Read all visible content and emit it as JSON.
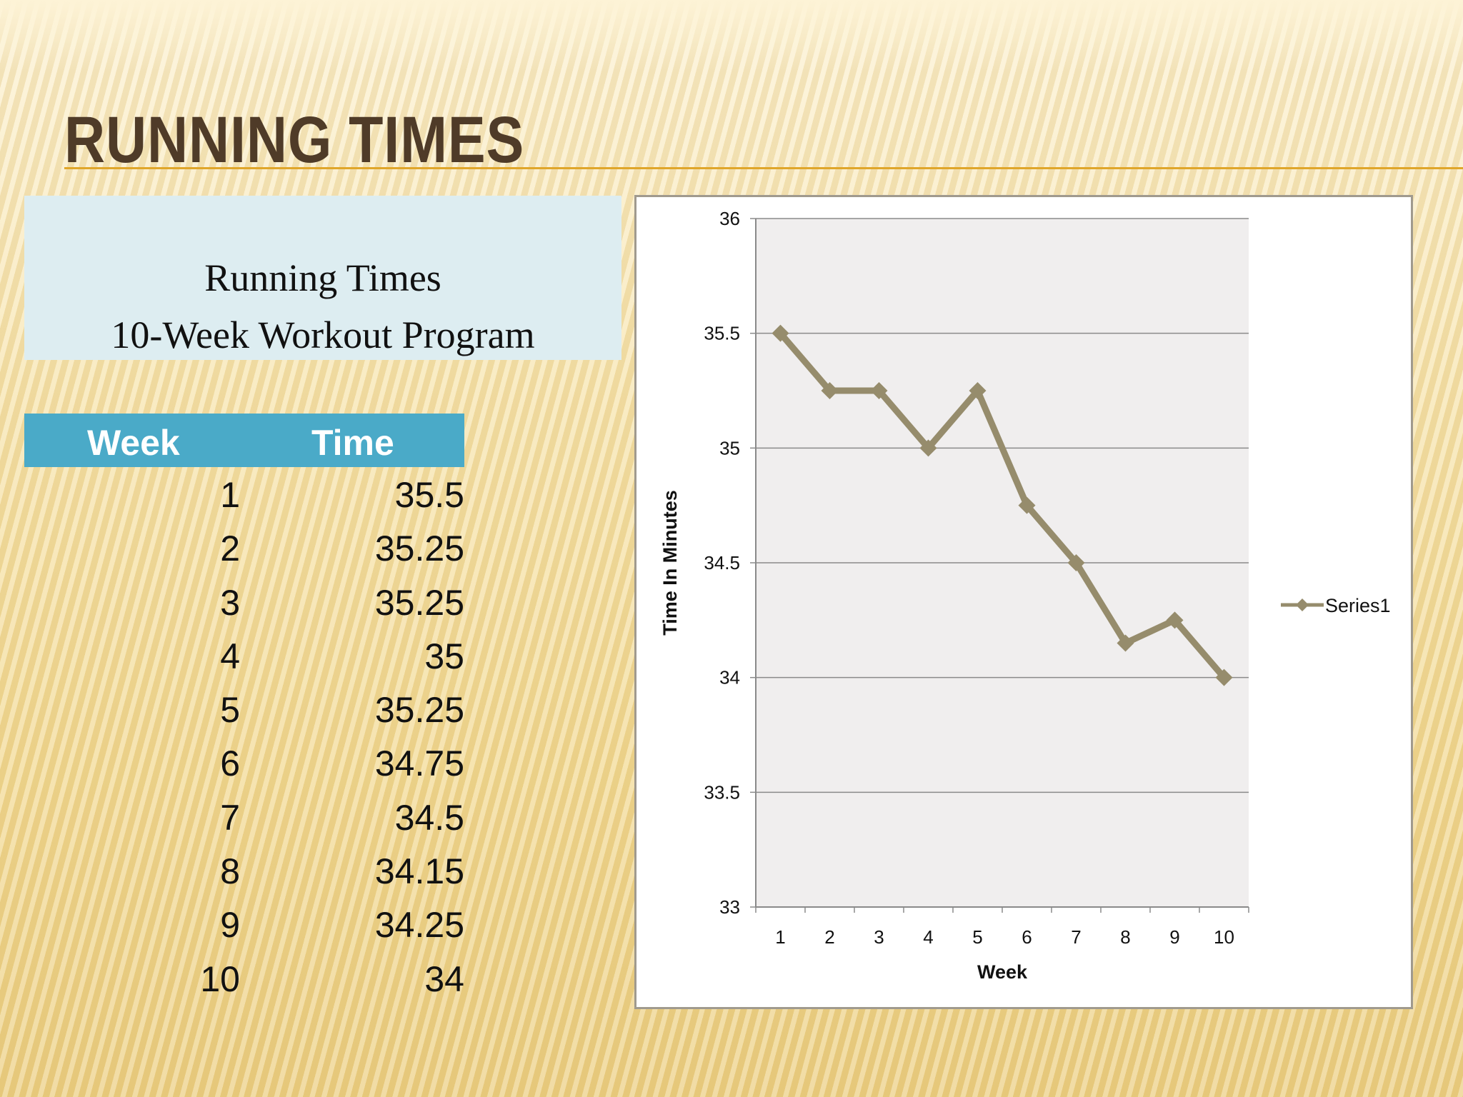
{
  "slide": {
    "title": "RUNNING TIMES"
  },
  "info_box": {
    "line1": "Running Times",
    "line2": "10-Week Workout Program"
  },
  "table": {
    "headers": {
      "week": "Week",
      "time": "Time"
    },
    "rows": [
      {
        "week": "1",
        "time": "35.5"
      },
      {
        "week": "2",
        "time": "35.25"
      },
      {
        "week": "3",
        "time": "35.25"
      },
      {
        "week": "4",
        "time": "35"
      },
      {
        "week": "5",
        "time": "35.25"
      },
      {
        "week": "6",
        "time": "34.75"
      },
      {
        "week": "7",
        "time": "34.5"
      },
      {
        "week": "8",
        "time": "34.15"
      },
      {
        "week": "9",
        "time": "34.25"
      },
      {
        "week": "10",
        "time": "34"
      }
    ]
  },
  "chart_data": {
    "type": "line",
    "x": [
      1,
      2,
      3,
      4,
      5,
      6,
      7,
      8,
      9,
      10
    ],
    "series": [
      {
        "name": "Series1",
        "values": [
          35.5,
          35.25,
          35.25,
          35,
          35.25,
          34.75,
          34.5,
          34.15,
          34.25,
          34
        ],
        "color": "#968c6c"
      }
    ],
    "xlabel": "Week",
    "ylabel": "Time In Minutes",
    "ylim": [
      33,
      36
    ],
    "yticks": [
      "33",
      "33.5",
      "34",
      "34.5",
      "35",
      "35.5",
      "36"
    ],
    "xticks": [
      "1",
      "2",
      "3",
      "4",
      "5",
      "6",
      "7",
      "8",
      "9",
      "10"
    ],
    "grid": "horizontal",
    "legend": "right",
    "plot_background": "#f0eeee"
  }
}
